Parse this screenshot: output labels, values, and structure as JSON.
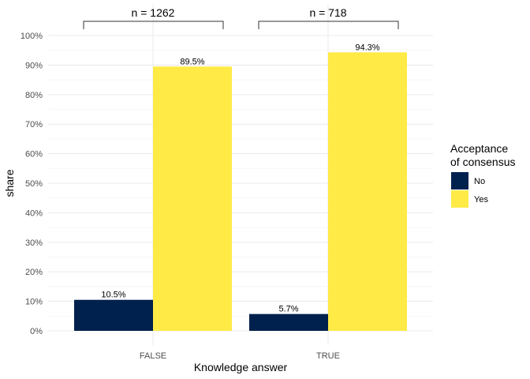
{
  "chart_data": {
    "type": "bar",
    "xlabel": "Knowledge answer",
    "ylabel": "share",
    "categories": [
      "FALSE",
      "TRUE"
    ],
    "ylim": [
      0,
      1
    ],
    "yticks": [
      "0%",
      "10%",
      "20%",
      "30%",
      "40%",
      "50%",
      "60%",
      "70%",
      "80%",
      "90%",
      "100%"
    ],
    "grid": true,
    "legend": {
      "title_lines": [
        "Acceptance",
        "of consensus"
      ],
      "placement": "right"
    },
    "series": [
      {
        "name": "No",
        "color": "#00204D",
        "values": [
          0.105,
          0.057
        ],
        "labels": [
          "10.5%",
          "5.7%"
        ]
      },
      {
        "name": "Yes",
        "color": "#FFEA46",
        "values": [
          0.895,
          0.943
        ],
        "labels": [
          "89.5%",
          "94.3%"
        ]
      }
    ],
    "annotations": [
      "n = 1262",
      "n = 718"
    ]
  }
}
